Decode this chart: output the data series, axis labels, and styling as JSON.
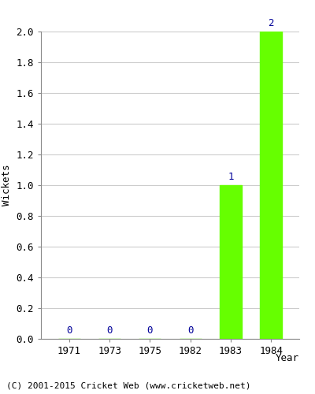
{
  "categories": [
    "1971",
    "1973",
    "1975",
    "1982",
    "1983",
    "1984"
  ],
  "values": [
    0,
    0,
    0,
    0,
    1,
    2
  ],
  "bar_color": "#66ff00",
  "label_color": "#000099",
  "ylabel": "Wickets",
  "xlabel": "Year",
  "ylim": [
    0.0,
    2.0
  ],
  "yticks": [
    0.0,
    0.2,
    0.4,
    0.6,
    0.8,
    1.0,
    1.2,
    1.4,
    1.6,
    1.8,
    2.0
  ],
  "background_color": "#ffffff",
  "grid_color": "#cccccc",
  "footer": "(C) 2001-2015 Cricket Web (www.cricketweb.net)",
  "bar_width": 0.55,
  "spine_color": "#888888",
  "tick_color": "#888888"
}
